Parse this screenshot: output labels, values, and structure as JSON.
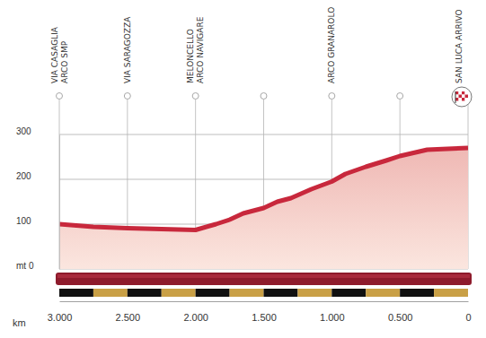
{
  "chart_data": {
    "type": "area",
    "x": [
      3,
      2.75,
      2.5,
      2.25,
      2.0,
      1.85,
      1.75,
      1.65,
      1.5,
      1.4,
      1.3,
      1.15,
      1.0,
      0.9,
      0.75,
      0.6,
      0.5,
      0.3,
      0.15,
      0
    ],
    "values": [
      100,
      94,
      91,
      89,
      87,
      100,
      110,
      124,
      136,
      150,
      158,
      178,
      195,
      212,
      228,
      242,
      252,
      266,
      268,
      270
    ],
    "color": "#c8283c",
    "xlim": [
      3,
      0
    ],
    "xticks": [
      {
        "value": 3,
        "label": "3.000"
      },
      {
        "value": 2.5,
        "label": "2.500"
      },
      {
        "value": 2,
        "label": "2.000"
      },
      {
        "value": 1.5,
        "label": "1.500"
      },
      {
        "value": 1,
        "label": "1.000"
      },
      {
        "value": 0.5,
        "label": "0.500"
      },
      0
    ],
    "ylim": [
      0,
      300
    ],
    "yticks": [
      {
        "value": 0,
        "label": "mt 0"
      },
      100,
      200,
      300
    ],
    "xlabel": "km",
    "grid": true,
    "annotations": [
      {
        "x": 3,
        "lines": [
          "VIA CASAGLIA",
          "ARCO SMP"
        ]
      },
      {
        "x": 2.5,
        "lines": [
          "VIA SARAGOZZA"
        ]
      },
      {
        "x": 2,
        "lines": [
          "MELONCELLO",
          "ARCO NAVIGARE"
        ]
      },
      {
        "x": 1,
        "lines": [
          "ARCO GRANAROLO"
        ]
      },
      {
        "x": 0,
        "lines": [
          "SAN LUCA ARRIVO"
        ]
      }
    ]
  }
}
